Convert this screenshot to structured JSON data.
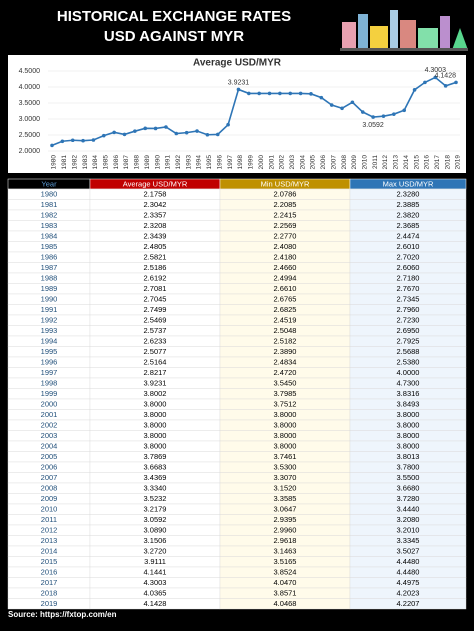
{
  "header": {
    "title_line1": "HISTORICAL EXCHANGE RATES",
    "title_line2": "USD AGAINST MYR"
  },
  "chart_data": {
    "type": "line",
    "title": "Average USD/MYR",
    "color": "#2e75b6",
    "categories": [
      "1980",
      "1981",
      "1982",
      "1983",
      "1984",
      "1985",
      "1986",
      "1987",
      "1988",
      "1989",
      "1990",
      "1991",
      "1992",
      "1993",
      "1994",
      "1995",
      "1996",
      "1997",
      "1998",
      "1999",
      "2000",
      "2001",
      "2002",
      "2003",
      "2004",
      "2005",
      "2006",
      "2007",
      "2008",
      "2009",
      "2010",
      "2011",
      "2012",
      "2013",
      "2014",
      "2015",
      "2016",
      "2017",
      "2018",
      "2019"
    ],
    "values": [
      2.1758,
      2.3042,
      2.3357,
      2.3208,
      2.3439,
      2.4805,
      2.5821,
      2.5186,
      2.6192,
      2.7081,
      2.7045,
      2.7499,
      2.5469,
      2.5737,
      2.6233,
      2.5077,
      2.5164,
      2.8217,
      3.9231,
      3.8002,
      3.8,
      3.8,
      3.8,
      3.8,
      3.8,
      3.7869,
      3.6683,
      3.4369,
      3.334,
      3.5232,
      3.2179,
      3.0592,
      3.089,
      3.1506,
      3.272,
      3.9111,
      4.1441,
      4.3003,
      4.0365,
      4.1428
    ],
    "value_labels": [
      null,
      null,
      null,
      null,
      null,
      null,
      null,
      null,
      null,
      null,
      null,
      null,
      null,
      null,
      null,
      null,
      null,
      null,
      "3.9231",
      null,
      null,
      null,
      null,
      null,
      null,
      null,
      null,
      null,
      null,
      null,
      null,
      "3.0592",
      null,
      null,
      null,
      null,
      null,
      "4.3003",
      null,
      "4.1428"
    ],
    "ylim": [
      2,
      4.5
    ],
    "yticks": [
      {
        "value": 2,
        "label": "2.0000"
      },
      {
        "value": 2.5,
        "label": "2.5000"
      },
      {
        "value": 3,
        "label": "3.0000"
      },
      {
        "value": 3.5,
        "label": "3.5000"
      },
      {
        "value": 4,
        "label": "4.0000"
      },
      {
        "value": 4.5,
        "label": "4.5000"
      }
    ]
  },
  "table": {
    "headers": [
      "Year",
      "Average USD/MYR",
      "Min USD/MYR",
      "Max USD/MYR"
    ],
    "rows": [
      [
        "1980",
        "2.1758",
        "2.0786",
        "2.3280"
      ],
      [
        "1981",
        "2.3042",
        "2.2085",
        "2.3885"
      ],
      [
        "1982",
        "2.3357",
        "2.2415",
        "2.3820"
      ],
      [
        "1983",
        "2.3208",
        "2.2569",
        "2.3685"
      ],
      [
        "1984",
        "2.3439",
        "2.2770",
        "2.4474"
      ],
      [
        "1985",
        "2.4805",
        "2.4080",
        "2.6010"
      ],
      [
        "1986",
        "2.5821",
        "2.4180",
        "2.7020"
      ],
      [
        "1987",
        "2.5186",
        "2.4660",
        "2.6060"
      ],
      [
        "1988",
        "2.6192",
        "2.4994",
        "2.7180"
      ],
      [
        "1989",
        "2.7081",
        "2.6610",
        "2.7670"
      ],
      [
        "1990",
        "2.7045",
        "2.6765",
        "2.7345"
      ],
      [
        "1991",
        "2.7499",
        "2.6825",
        "2.7960"
      ],
      [
        "1992",
        "2.5469",
        "2.4519",
        "2.7230"
      ],
      [
        "1993",
        "2.5737",
        "2.5048",
        "2.6950"
      ],
      [
        "1994",
        "2.6233",
        "2.5182",
        "2.7925"
      ],
      [
        "1995",
        "2.5077",
        "2.3890",
        "2.5688"
      ],
      [
        "1996",
        "2.5164",
        "2.4834",
        "2.5380"
      ],
      [
        "1997",
        "2.8217",
        "2.4720",
        "4.0000"
      ],
      [
        "1998",
        "3.9231",
        "3.5450",
        "4.7300"
      ],
      [
        "1999",
        "3.8002",
        "3.7985",
        "3.8316"
      ],
      [
        "2000",
        "3.8000",
        "3.7512",
        "3.8493"
      ],
      [
        "2001",
        "3.8000",
        "3.8000",
        "3.8000"
      ],
      [
        "2002",
        "3.8000",
        "3.8000",
        "3.8000"
      ],
      [
        "2003",
        "3.8000",
        "3.8000",
        "3.8000"
      ],
      [
        "2004",
        "3.8000",
        "3.8000",
        "3.8000"
      ],
      [
        "2005",
        "3.7869",
        "3.7461",
        "3.8013"
      ],
      [
        "2006",
        "3.6683",
        "3.5300",
        "3.7800"
      ],
      [
        "2007",
        "3.4369",
        "3.3070",
        "3.5500"
      ],
      [
        "2008",
        "3.3340",
        "3.1520",
        "3.6680"
      ],
      [
        "2009",
        "3.5232",
        "3.3585",
        "3.7280"
      ],
      [
        "2010",
        "3.2179",
        "3.0647",
        "3.4440"
      ],
      [
        "2011",
        "3.0592",
        "2.9395",
        "3.2080"
      ],
      [
        "2012",
        "3.0890",
        "2.9960",
        "3.2010"
      ],
      [
        "2013",
        "3.1506",
        "2.9618",
        "3.3345"
      ],
      [
        "2014",
        "3.2720",
        "3.1463",
        "3.5027"
      ],
      [
        "2015",
        "3.9111",
        "3.5165",
        "4.4480"
      ],
      [
        "2016",
        "4.1441",
        "3.8524",
        "4.4480"
      ],
      [
        "2017",
        "4.3003",
        "4.0470",
        "4.4975"
      ],
      [
        "2018",
        "4.0365",
        "3.8571",
        "4.2023"
      ],
      [
        "2019",
        "4.1428",
        "4.0468",
        "4.2207"
      ]
    ]
  },
  "footer": {
    "source": "Source: https://fxtop.com/en"
  }
}
